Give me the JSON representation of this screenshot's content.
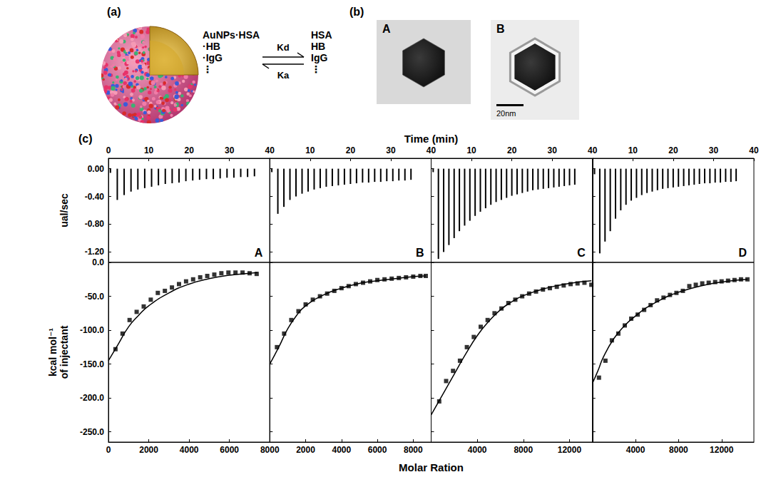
{
  "panels": {
    "a": {
      "label": "(a)",
      "complex": [
        "AuNPs·HSA",
        "·HB",
        "·IgG",
        "⋮"
      ],
      "forward": "Kd",
      "backward": "Ka",
      "free": [
        "HSA",
        "HB",
        "IgG",
        "⋮"
      ]
    },
    "b": {
      "label": "(b)",
      "images": [
        {
          "label": "A"
        },
        {
          "label": "B"
        }
      ],
      "scale_bar": "20nm"
    },
    "c": {
      "label": "(c)",
      "xlabel_top": "Time (min)",
      "xlabel_bottom": "Molar Ration"
    }
  },
  "chart_data": [
    {
      "type": "bar",
      "title": "A",
      "ylabel": "ual/sec",
      "color": "#000000",
      "xlim": [
        0,
        40
      ],
      "xticks": [
        0,
        10,
        20,
        30,
        40
      ],
      "ylim": [
        -1.35,
        0.15
      ],
      "yticks": [
        {
          "value": 0,
          "label": "0.00"
        },
        {
          "value": -0.4,
          "label": "-0.40"
        },
        {
          "value": -0.8,
          "label": "-0.80"
        },
        {
          "value": -1.2,
          "label": "-1.20"
        }
      ],
      "x": [
        0.5,
        2.2,
        3.9,
        5.6,
        7.3,
        9.0,
        10.7,
        12.4,
        14.1,
        15.8,
        17.5,
        19.2,
        20.9,
        22.6,
        24.3,
        26.0,
        27.7,
        29.4,
        31.1,
        32.8,
        34.5,
        36.2
      ],
      "values": [
        -0.06,
        -0.45,
        -0.38,
        -0.33,
        -0.3,
        -0.28,
        -0.26,
        -0.24,
        -0.22,
        -0.21,
        -0.2,
        -0.18,
        -0.17,
        -0.16,
        -0.15,
        -0.15,
        -0.14,
        -0.13,
        -0.13,
        -0.12,
        -0.12,
        -0.11
      ]
    },
    {
      "type": "bar",
      "title": "B",
      "tick_labels": "x",
      "color": "#000000",
      "xlim": [
        0,
        40
      ],
      "xticks": [
        10,
        20,
        30,
        40
      ],
      "ylim": [
        -1.35,
        0.15
      ],
      "yticks": [
        {
          "value": 0,
          "label": "0.00"
        },
        {
          "value": -0.4,
          "label": "-0.40"
        },
        {
          "value": -0.8,
          "label": "-0.80"
        },
        {
          "value": -1.2,
          "label": "-1.20"
        }
      ],
      "x": [
        0.5,
        2.0,
        3.5,
        5.0,
        6.5,
        8.0,
        9.5,
        11.0,
        12.5,
        14.0,
        15.5,
        17.0,
        18.5,
        20.0,
        21.5,
        23.0,
        24.5,
        26.0,
        27.5,
        29.0,
        30.5,
        32.0,
        33.5,
        35.0
      ],
      "values": [
        -0.05,
        -0.65,
        -0.55,
        -0.45,
        -0.4,
        -0.36,
        -0.33,
        -0.3,
        -0.28,
        -0.26,
        -0.25,
        -0.24,
        -0.23,
        -0.22,
        -0.21,
        -0.2,
        -0.2,
        -0.19,
        -0.19,
        -0.18,
        -0.18,
        -0.17,
        -0.17,
        -0.16
      ]
    },
    {
      "type": "bar",
      "title": "C",
      "tick_labels": "x",
      "color": "#000000",
      "xlim": [
        0,
        40
      ],
      "xticks": [
        10,
        20,
        30,
        40
      ],
      "ylim": [
        -1.35,
        0.15
      ],
      "yticks": [
        {
          "value": 0,
          "label": "0.00"
        },
        {
          "value": -0.4,
          "label": "-0.40"
        },
        {
          "value": -0.8,
          "label": "-0.80"
        },
        {
          "value": -1.2,
          "label": "-1.20"
        }
      ],
      "x": [
        0.5,
        1.8,
        3.1,
        4.4,
        5.7,
        7.0,
        8.3,
        9.6,
        10.9,
        12.2,
        13.5,
        14.8,
        16.1,
        17.4,
        18.7,
        20.0,
        21.3,
        22.6,
        23.9,
        25.2,
        26.5,
        27.8,
        29.1,
        30.4,
        31.7,
        33.0,
        34.3,
        35.6
      ],
      "values": [
        -0.05,
        -1.3,
        -1.2,
        -1.1,
        -1.0,
        -0.9,
        -0.82,
        -0.75,
        -0.68,
        -0.62,
        -0.57,
        -0.52,
        -0.48,
        -0.45,
        -0.42,
        -0.39,
        -0.37,
        -0.35,
        -0.33,
        -0.31,
        -0.3,
        -0.29,
        -0.28,
        -0.27,
        -0.26,
        -0.25,
        -0.24,
        -0.23
      ]
    },
    {
      "type": "bar",
      "title": "D",
      "tick_labels": "x",
      "color": "#000000",
      "xlim": [
        0,
        40
      ],
      "xticks": [
        10,
        20,
        30,
        40
      ],
      "ylim": [
        -1.35,
        0.15
      ],
      "yticks": [
        {
          "value": 0,
          "label": "0.00"
        },
        {
          "value": -0.4,
          "label": "-0.40"
        },
        {
          "value": -0.8,
          "label": "-0.80"
        },
        {
          "value": -1.2,
          "label": "-1.20"
        }
      ],
      "x": [
        0.5,
        1.8,
        3.1,
        4.4,
        5.7,
        7.0,
        8.3,
        9.6,
        10.9,
        12.2,
        13.5,
        14.8,
        16.1,
        17.4,
        18.7,
        20.0,
        21.3,
        22.6,
        23.9,
        25.2,
        26.5,
        27.8,
        29.1,
        30.4,
        31.7,
        33.0,
        34.3,
        35.6
      ],
      "values": [
        -0.08,
        -1.22,
        -1.05,
        -0.9,
        -0.72,
        -0.6,
        -0.52,
        -0.46,
        -0.42,
        -0.38,
        -0.35,
        -0.33,
        -0.31,
        -0.29,
        -0.28,
        -0.27,
        -0.26,
        -0.25,
        -0.24,
        -0.23,
        -0.22,
        -0.21,
        -0.21,
        -0.2,
        -0.2,
        -0.19,
        -0.19,
        -0.18
      ]
    },
    {
      "type": "scatter",
      "ylabel": "kcal mol⁻¹\nof injectant",
      "xlim": [
        0,
        8000
      ],
      "xticks": [
        0,
        2000,
        4000,
        6000,
        8000
      ],
      "ylim": [
        -265,
        0
      ],
      "yticks": [
        {
          "value": 0,
          "label": "0.0"
        },
        {
          "value": -50,
          "label": "-50.0"
        },
        {
          "value": -100,
          "label": "-100.0"
        },
        {
          "value": -150,
          "label": "-150.0"
        },
        {
          "value": -200,
          "label": "-200.0"
        },
        {
          "value": -250,
          "label": "-250.0"
        }
      ],
      "series": [
        {
          "type": "scatter",
          "marker": "square",
          "color": "#000000",
          "x": [
            350,
            700,
            1050,
            1400,
            1750,
            2100,
            2450,
            2800,
            3150,
            3500,
            3850,
            4200,
            4550,
            4900,
            5250,
            5600,
            5950,
            6300,
            6650,
            7000,
            7350
          ],
          "values": [
            -128,
            -105,
            -85,
            -73,
            -65,
            -55,
            -45,
            -42,
            -37,
            -32,
            -28,
            -25,
            -22,
            -20,
            -18,
            -16,
            -15,
            -15,
            -15,
            -16,
            -17
          ]
        },
        {
          "type": "line",
          "line_style": "solid",
          "color": "#000000",
          "x": [
            0,
            500,
            1000,
            1500,
            2000,
            3000,
            4000,
            5000,
            6000,
            7000,
            7400
          ],
          "values": [
            -145,
            -120,
            -95,
            -78,
            -64,
            -45,
            -32,
            -24,
            -19,
            -16,
            -15
          ]
        }
      ]
    },
    {
      "type": "scatter",
      "tick_labels": "x",
      "xlim": [
        0,
        9000
      ],
      "xticks": [
        2000,
        4000,
        6000,
        8000
      ],
      "ylim": [
        -265,
        0
      ],
      "yticks": [
        {
          "value": 0,
          "label": "0.0"
        },
        {
          "value": -50,
          "label": "-50.0"
        },
        {
          "value": -100,
          "label": "-100.0"
        },
        {
          "value": -150,
          "label": "-150.0"
        },
        {
          "value": -200,
          "label": "-200.0"
        },
        {
          "value": -250,
          "label": "-250.0"
        }
      ],
      "series": [
        {
          "type": "scatter",
          "marker": "square",
          "color": "#000000",
          "x": [
            400,
            800,
            1200,
            1600,
            2000,
            2400,
            2800,
            3200,
            3600,
            4000,
            4400,
            4800,
            5200,
            5600,
            6000,
            6400,
            6800,
            7200,
            7600,
            8000,
            8400,
            8700
          ],
          "values": [
            -125,
            -105,
            -85,
            -72,
            -62,
            -55,
            -50,
            -46,
            -42,
            -38,
            -35,
            -32,
            -30,
            -28,
            -26,
            -25,
            -24,
            -23,
            -22,
            -21,
            -20,
            -20
          ]
        },
        {
          "type": "line",
          "line_style": "solid",
          "color": "#000000",
          "x": [
            0,
            500,
            1000,
            1500,
            2000,
            3000,
            4000,
            5000,
            6000,
            7000,
            8000,
            8700
          ],
          "values": [
            -150,
            -125,
            -98,
            -78,
            -64,
            -48,
            -38,
            -31,
            -27,
            -24,
            -21,
            -20
          ]
        }
      ]
    },
    {
      "type": "scatter",
      "tick_labels": "x",
      "xlim": [
        0,
        14000
      ],
      "xticks": [
        4000,
        8000,
        12000
      ],
      "ylim": [
        -265,
        0
      ],
      "yticks": [
        {
          "value": 0,
          "label": "0.0"
        },
        {
          "value": -50,
          "label": "-50.0"
        },
        {
          "value": -100,
          "label": "-100.0"
        },
        {
          "value": -150,
          "label": "-150.0"
        },
        {
          "value": -200,
          "label": "-200.0"
        },
        {
          "value": -250,
          "label": "-250.0"
        }
      ],
      "series": [
        {
          "type": "scatter",
          "marker": "square",
          "color": "#000000",
          "x": [
            700,
            1300,
            1900,
            2500,
            3100,
            3700,
            4300,
            4900,
            5500,
            6100,
            6700,
            7300,
            7900,
            8500,
            9100,
            9700,
            10300,
            10900,
            11500,
            12100,
            12700,
            13300,
            13900
          ],
          "values": [
            -205,
            -175,
            -160,
            -145,
            -125,
            -110,
            -95,
            -85,
            -75,
            -68,
            -60,
            -55,
            -50,
            -46,
            -43,
            -40,
            -38,
            -36,
            -34,
            -32,
            -31,
            -30,
            -33
          ]
        },
        {
          "type": "line",
          "line_style": "solid",
          "color": "#000000",
          "x": [
            0,
            1000,
            2000,
            3000,
            4000,
            5000,
            6000,
            7000,
            8000,
            10000,
            12000,
            13900
          ],
          "values": [
            -225,
            -195,
            -165,
            -135,
            -108,
            -87,
            -70,
            -58,
            -49,
            -38,
            -31,
            -27
          ]
        }
      ]
    },
    {
      "type": "scatter",
      "tick_labels": "x",
      "xlim": [
        0,
        15000
      ],
      "xticks": [
        4000,
        8000,
        12000
      ],
      "ylim": [
        -265,
        0
      ],
      "yticks": [
        {
          "value": 0,
          "label": "0.0"
        },
        {
          "value": -50,
          "label": "-50.0"
        },
        {
          "value": -100,
          "label": "-100.0"
        },
        {
          "value": -150,
          "label": "-150.0"
        },
        {
          "value": -200,
          "label": "-200.0"
        },
        {
          "value": -250,
          "label": "-250.0"
        }
      ],
      "series": [
        {
          "type": "scatter",
          "marker": "square",
          "color": "#000000",
          "x": [
            600,
            1200,
            1800,
            2400,
            3000,
            3600,
            4200,
            4800,
            5400,
            6000,
            6600,
            7200,
            7800,
            8400,
            9000,
            9600,
            10200,
            10800,
            11400,
            12000,
            12600,
            13200,
            13800,
            14400
          ],
          "values": [
            -170,
            -145,
            -115,
            -105,
            -93,
            -83,
            -77,
            -70,
            -63,
            -56,
            -52,
            -48,
            -45,
            -42,
            -35,
            -33,
            -31,
            -30,
            -29,
            -28,
            -27,
            -26,
            -25,
            -25
          ]
        },
        {
          "type": "line",
          "line_style": "solid",
          "color": "#000000",
          "x": [
            0,
            500,
            1000,
            2000,
            3000,
            4000,
            5000,
            6000,
            7000,
            8000,
            10000,
            12000,
            14400
          ],
          "values": [
            -178,
            -160,
            -140,
            -112,
            -93,
            -79,
            -67,
            -58,
            -50,
            -44,
            -35,
            -29,
            -25
          ]
        }
      ]
    }
  ]
}
